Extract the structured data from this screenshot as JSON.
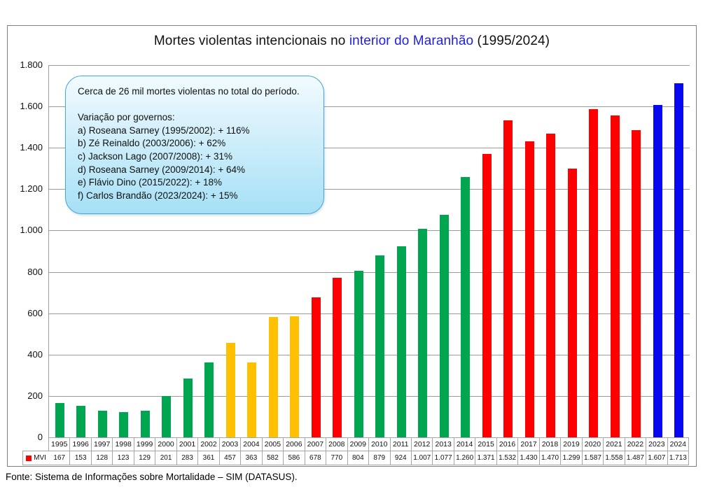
{
  "title": {
    "prefix": "Mortes violentas intencionais no ",
    "highlight": "interior do Maranhão",
    "suffix": " (1995/2024)",
    "highlight_color": "#1F1FE0"
  },
  "callout": {
    "lines": [
      "Cerca de 26 mil mortes violentas no total do período.",
      "",
      "Variação por governos:",
      "a) Roseana Sarney (1995/2002): + 116%",
      "b) Zé Reinaldo (2003/2006): + 62%",
      "c) Jackson Lago (2007/2008): + 31%",
      "d) Roseana Sarney (2009/2014): + 64%",
      "e) Flávio Dino (2015/2022): + 18%",
      "f) Carlos Brandão (2023/2024): + 15%"
    ]
  },
  "legend": {
    "label": "MVI",
    "color": "#FF0000"
  },
  "footer": "Fonte: Sistema de Informações sobre Mortalidade – SIM (DATASUS).",
  "colors": {
    "grid": "#9b9b9b",
    "table_border": "#a6a6a6",
    "figure_border": "#808080"
  },
  "chart_data": {
    "type": "bar",
    "title": "Mortes violentas intencionais no interior do Maranhão (1995/2024)",
    "xlabel": "",
    "ylabel": "",
    "ylim": [
      0,
      1800
    ],
    "ytick_step": 200,
    "grid": true,
    "legend_position": "bottom-table",
    "series_name": "MVI",
    "categories": [
      1995,
      1996,
      1997,
      1998,
      1999,
      2000,
      2001,
      2002,
      2003,
      2004,
      2005,
      2006,
      2007,
      2008,
      2009,
      2010,
      2011,
      2012,
      2013,
      2014,
      2015,
      2016,
      2017,
      2018,
      2019,
      2020,
      2021,
      2022,
      2023,
      2024
    ],
    "values": [
      167,
      153,
      128,
      123,
      129,
      201,
      283,
      361,
      457,
      363,
      582,
      586,
      678,
      770,
      804,
      879,
      924,
      1007,
      1077,
      1260,
      1371,
      1532,
      1430,
      1470,
      1299,
      1587,
      1558,
      1487,
      1607,
      1713
    ],
    "values_display": [
      "167",
      "153",
      "128",
      "123",
      "129",
      "201",
      "283",
      "361",
      "457",
      "363",
      "582",
      "586",
      "678",
      "770",
      "804",
      "879",
      "924",
      "1.007",
      "1.077",
      "1.260",
      "1.371",
      "1.532",
      "1.430",
      "1.470",
      "1.299",
      "1.587",
      "1.558",
      "1.487",
      "1.607",
      "1.713"
    ],
    "yticks_display": [
      "0",
      "200",
      "400",
      "600",
      "800",
      "1.000",
      "1.200",
      "1.400",
      "1.600",
      "1.800"
    ],
    "color_periods": [
      {
        "start": 1995,
        "end": 2002,
        "government": "Roseana Sarney",
        "color": "#00A64F"
      },
      {
        "start": 2003,
        "end": 2006,
        "government": "Zé Reinaldo",
        "color": "#FFC000"
      },
      {
        "start": 2007,
        "end": 2008,
        "government": "Jackson Lago",
        "color": "#FF0000"
      },
      {
        "start": 2009,
        "end": 2014,
        "government": "Roseana Sarney",
        "color": "#00A64F"
      },
      {
        "start": 2015,
        "end": 2022,
        "government": "Flávio Dino",
        "color": "#FF0000"
      },
      {
        "start": 2023,
        "end": 2024,
        "government": "Carlos Brandão",
        "color": "#0808F0"
      }
    ]
  }
}
